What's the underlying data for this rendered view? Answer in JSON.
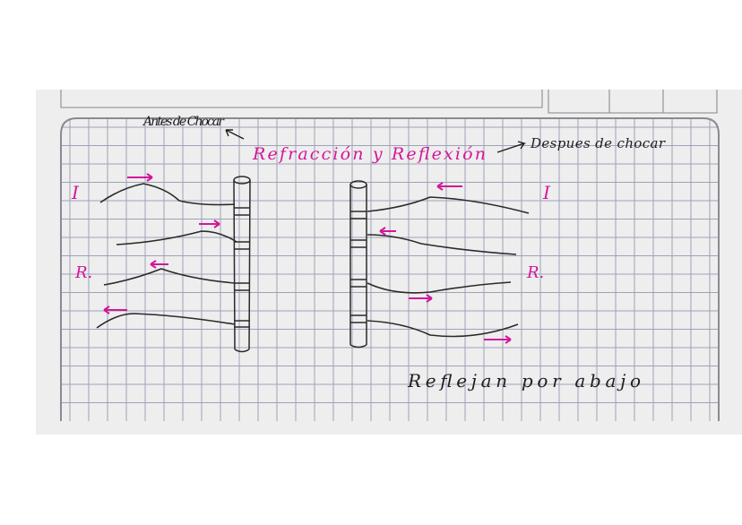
{
  "title": "Refracción y Reflexión",
  "notes": {
    "before": "Antes de Chocar",
    "after": "Despues de chocar",
    "bottom": "Reflejan por abajo"
  },
  "left_labels": [
    "I",
    "R."
  ],
  "right_labels": [
    "I",
    "R."
  ]
}
